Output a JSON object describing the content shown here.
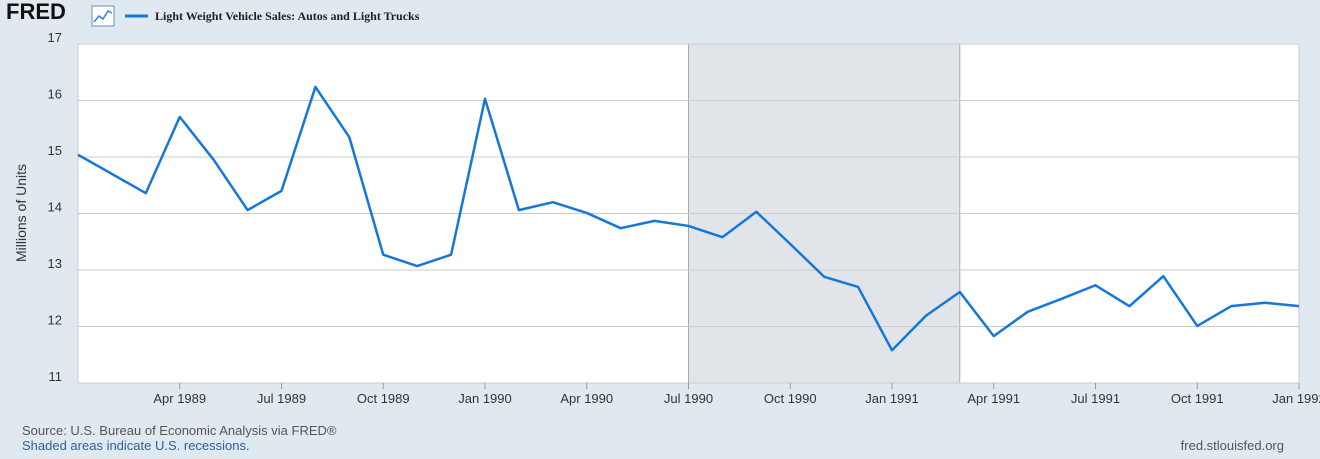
{
  "logo": "FRED",
  "chart_data": {
    "type": "line",
    "y_label": "Millions of Units",
    "categories": [
      "Jan 1989",
      "Feb 1989",
      "Mar 1989",
      "Apr 1989",
      "May 1989",
      "Jun 1989",
      "Jul 1989",
      "Aug 1989",
      "Sep 1989",
      "Oct 1989",
      "Nov 1989",
      "Dec 1989",
      "Jan 1990",
      "Feb 1990",
      "Mar 1990",
      "Apr 1990",
      "May 1990",
      "Jun 1990",
      "Jul 1990",
      "Aug 1990",
      "Sep 1990",
      "Oct 1990",
      "Nov 1990",
      "Dec 1990",
      "Jan 1991",
      "Feb 1991",
      "Mar 1991",
      "Apr 1991",
      "May 1991",
      "Jun 1991",
      "Jul 1991",
      "Aug 1991",
      "Sep 1991",
      "Oct 1991",
      "Nov 1991",
      "Dec 1991",
      "Jan 1992"
    ],
    "series": [
      {
        "name": "Light Weight Vehicle Sales: Autos and Light Trucks",
        "color": "#1477d9",
        "values": [
          15.04,
          14.7,
          14.36,
          15.71,
          14.95,
          14.06,
          14.4,
          16.24,
          15.35,
          13.27,
          13.07,
          13.27,
          16.03,
          14.06,
          14.2,
          14.01,
          13.74,
          13.87,
          13.78,
          13.58,
          14.03,
          13.46,
          12.88,
          12.7,
          11.58,
          12.19,
          12.61,
          11.83,
          12.26,
          12.49,
          12.73,
          12.36,
          12.89,
          12.01,
          12.36,
          12.42,
          12.36
        ]
      }
    ],
    "xticks": [
      "Apr 1989",
      "Jul 1989",
      "Oct 1989",
      "Jan 1990",
      "Apr 1990",
      "Jul 1990",
      "Oct 1990",
      "Jan 1991",
      "Apr 1991",
      "Jul 1991",
      "Oct 1991",
      "Jan 1992"
    ],
    "recessions": [
      [
        "Jul 1990",
        "Mar 1991"
      ]
    ],
    "ylim": [
      11,
      17
    ],
    "yticks": [
      11,
      12,
      13,
      14,
      15,
      16,
      17
    ],
    "grid": true
  },
  "footer": {
    "source": "Source: U.S. Bureau of Economic Analysis via FRED®",
    "note": "Shaded areas indicate U.S. recessions.",
    "site": "fred.stlouisfed.org"
  }
}
